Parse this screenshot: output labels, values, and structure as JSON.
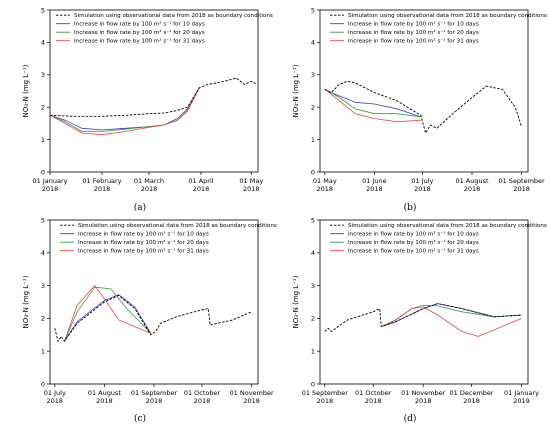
{
  "legend": {
    "base": "Simulation using observational data from 2018 as boundary conditions",
    "s10": "Increase in flow rate by 100 m³ s⁻¹ for 10 days",
    "s20": "Increase in flow rate by 100 m³ s⁻¹ for 20 days",
    "s31": "Increase in flow rate by 100 m³ s⁻¹ for 31 days"
  },
  "colors": {
    "base": "#000000",
    "s10": "#3a3ad8",
    "s20": "#3a9a3a",
    "s31": "#e84545"
  },
  "chart_data": [
    {
      "type": "line",
      "panel_label": "(a)",
      "ylabel": "NO₃-N (mg L⁻¹)",
      "ylim": [
        0,
        5
      ],
      "yticks": [
        0,
        1,
        2,
        3,
        4,
        5
      ],
      "xlim": [
        "2018-01-01",
        "2018-05-05"
      ],
      "xticks": [
        {
          "x": "2018-01-01",
          "label": "01 January",
          "year": "2018"
        },
        {
          "x": "2018-02-01",
          "label": "01 February",
          "year": "2018"
        },
        {
          "x": "2018-03-01",
          "label": "01 March",
          "year": "2018"
        },
        {
          "x": "2018-04-01",
          "label": "01 April",
          "year": "2018"
        },
        {
          "x": "2018-05-01",
          "label": "01 May",
          "year": "2018"
        }
      ],
      "legend_position": "top-left",
      "series": [
        {
          "key": "base",
          "style": "dashed",
          "x": [
            "2018-01-01",
            "2018-01-15",
            "2018-02-01",
            "2018-02-15",
            "2018-03-01",
            "2018-03-10",
            "2018-03-18",
            "2018-03-24",
            "2018-03-31",
            "2018-04-05",
            "2018-04-15",
            "2018-04-22",
            "2018-04-27",
            "2018-05-01",
            "2018-05-04"
          ],
          "y": [
            1.75,
            1.72,
            1.72,
            1.75,
            1.8,
            1.82,
            1.9,
            2.0,
            2.6,
            2.7,
            2.8,
            2.9,
            2.7,
            2.8,
            2.72
          ]
        },
        {
          "key": "s10",
          "style": "solid",
          "x": [
            "2018-01-01",
            "2018-01-10",
            "2018-01-20",
            "2018-02-01",
            "2018-02-15",
            "2018-03-01",
            "2018-03-10",
            "2018-03-18",
            "2018-03-24",
            "2018-03-31"
          ],
          "y": [
            1.75,
            1.6,
            1.35,
            1.3,
            1.35,
            1.4,
            1.45,
            1.65,
            1.95,
            2.6
          ]
        },
        {
          "key": "s20",
          "style": "solid",
          "x": [
            "2018-01-01",
            "2018-01-10",
            "2018-01-20",
            "2018-02-01",
            "2018-02-15",
            "2018-03-01",
            "2018-03-10",
            "2018-03-18",
            "2018-03-24",
            "2018-03-31"
          ],
          "y": [
            1.75,
            1.55,
            1.25,
            1.25,
            1.32,
            1.4,
            1.45,
            1.6,
            1.9,
            2.6
          ]
        },
        {
          "key": "s31",
          "style": "solid",
          "x": [
            "2018-01-01",
            "2018-01-10",
            "2018-01-20",
            "2018-02-01",
            "2018-02-15",
            "2018-03-01",
            "2018-03-10",
            "2018-03-18",
            "2018-03-24",
            "2018-03-31"
          ],
          "y": [
            1.75,
            1.5,
            1.2,
            1.15,
            1.25,
            1.38,
            1.45,
            1.6,
            1.88,
            2.6
          ]
        }
      ]
    },
    {
      "type": "line",
      "panel_label": "(b)",
      "ylabel": "NO₃-N (mg L⁻¹)",
      "ylim": [
        0,
        5
      ],
      "yticks": [
        0,
        1,
        2,
        3,
        4,
        5
      ],
      "xlim": [
        "2018-04-28",
        "2018-09-05"
      ],
      "xticks": [
        {
          "x": "2018-05-01",
          "label": "01 May",
          "year": "2018"
        },
        {
          "x": "2018-06-01",
          "label": "01 June",
          "year": "2018"
        },
        {
          "x": "2018-07-01",
          "label": "01 July",
          "year": "2018"
        },
        {
          "x": "2018-08-01",
          "label": "01 August",
          "year": "2018"
        },
        {
          "x": "2018-09-01",
          "label": "01 September",
          "year": "2018"
        }
      ],
      "legend_position": "top-right",
      "series": [
        {
          "key": "base",
          "style": "dashed",
          "x": [
            "2018-05-01",
            "2018-05-05",
            "2018-05-10",
            "2018-05-15",
            "2018-05-20",
            "2018-06-01",
            "2018-06-15",
            "2018-06-30",
            "2018-07-03",
            "2018-07-06",
            "2018-07-10",
            "2018-07-20",
            "2018-08-01",
            "2018-08-10",
            "2018-08-20",
            "2018-08-28",
            "2018-09-01"
          ],
          "y": [
            2.55,
            2.45,
            2.7,
            2.8,
            2.75,
            2.45,
            2.2,
            1.75,
            1.2,
            1.45,
            1.35,
            1.8,
            2.3,
            2.65,
            2.55,
            2.0,
            1.4
          ]
        },
        {
          "key": "s10",
          "style": "solid",
          "x": [
            "2018-05-01",
            "2018-05-05",
            "2018-05-10",
            "2018-05-20",
            "2018-06-01",
            "2018-06-15",
            "2018-06-30"
          ],
          "y": [
            2.55,
            2.45,
            2.35,
            2.15,
            2.1,
            1.95,
            1.7
          ]
        },
        {
          "key": "s20",
          "style": "solid",
          "x": [
            "2018-05-01",
            "2018-05-05",
            "2018-05-10",
            "2018-05-20",
            "2018-06-01",
            "2018-06-15",
            "2018-06-30"
          ],
          "y": [
            2.55,
            2.45,
            2.3,
            1.95,
            1.8,
            1.8,
            1.7
          ]
        },
        {
          "key": "s31",
          "style": "solid",
          "x": [
            "2018-05-01",
            "2018-05-05",
            "2018-05-10",
            "2018-05-20",
            "2018-06-01",
            "2018-06-15",
            "2018-06-30"
          ],
          "y": [
            2.55,
            2.4,
            2.2,
            1.8,
            1.65,
            1.55,
            1.6
          ]
        }
      ]
    },
    {
      "type": "line",
      "panel_label": "(c)",
      "ylabel": "NO₃-N (mg L⁻¹)",
      "ylim": [
        0,
        5
      ],
      "yticks": [
        0,
        1,
        2,
        3,
        4,
        5
      ],
      "xlim": [
        "2018-06-28",
        "2018-11-05"
      ],
      "xticks": [
        {
          "x": "2018-07-01",
          "label": "01 July",
          "year": "2018"
        },
        {
          "x": "2018-08-01",
          "label": "01 August",
          "year": "2018"
        },
        {
          "x": "2018-09-01",
          "label": "01 September",
          "year": "2018"
        },
        {
          "x": "2018-10-01",
          "label": "01 October",
          "year": "2018"
        },
        {
          "x": "2018-11-01",
          "label": "01 November",
          "year": "2018"
        }
      ],
      "legend_position": "top-right",
      "series": [
        {
          "key": "base",
          "style": "dashed",
          "x": [
            "2018-07-01",
            "2018-07-03",
            "2018-07-05",
            "2018-07-07",
            "2018-07-15",
            "2018-08-01",
            "2018-08-10",
            "2018-08-20",
            "2018-08-30",
            "2018-09-02",
            "2018-09-05",
            "2018-09-15",
            "2018-09-30",
            "2018-10-05",
            "2018-10-06",
            "2018-10-20",
            "2018-11-01"
          ],
          "y": [
            1.7,
            1.3,
            1.45,
            1.3,
            1.85,
            2.5,
            2.7,
            2.3,
            1.5,
            1.6,
            1.85,
            2.05,
            2.25,
            2.3,
            1.8,
            1.95,
            2.2
          ]
        },
        {
          "key": "s10",
          "style": "solid",
          "x": [
            "2018-07-07",
            "2018-07-15",
            "2018-08-01",
            "2018-08-10",
            "2018-08-20",
            "2018-08-30"
          ],
          "y": [
            1.3,
            1.9,
            2.55,
            2.72,
            2.35,
            1.55
          ]
        },
        {
          "key": "s20",
          "style": "solid",
          "x": [
            "2018-07-07",
            "2018-07-15",
            "2018-07-26",
            "2018-08-05",
            "2018-08-15",
            "2018-08-30"
          ],
          "y": [
            1.3,
            2.2,
            2.95,
            2.9,
            2.3,
            1.55
          ]
        },
        {
          "key": "s31",
          "style": "solid",
          "x": [
            "2018-07-07",
            "2018-07-15",
            "2018-07-26",
            "2018-08-01",
            "2018-08-10",
            "2018-08-30"
          ],
          "y": [
            1.3,
            2.4,
            3.0,
            2.6,
            1.95,
            1.55
          ]
        }
      ]
    },
    {
      "type": "line",
      "panel_label": "(d)",
      "ylabel": "NO₃-N (mg L⁻¹)",
      "ylim": [
        0,
        5
      ],
      "yticks": [
        0,
        1,
        2,
        3,
        4,
        5
      ],
      "xlim": [
        "2018-08-29",
        "2019-01-05"
      ],
      "xticks": [
        {
          "x": "2018-09-01",
          "label": "01 September",
          "year": "2018"
        },
        {
          "x": "2018-10-01",
          "label": "01 October",
          "year": "2018"
        },
        {
          "x": "2018-11-01",
          "label": "01 November",
          "year": "2018"
        },
        {
          "x": "2018-12-01",
          "label": "01 December",
          "year": "2018"
        },
        {
          "x": "2019-01-01",
          "label": "01 January",
          "year": "2019"
        }
      ],
      "legend_position": "top-right",
      "series": [
        {
          "key": "base",
          "style": "dashed",
          "x": [
            "2018-09-01",
            "2018-09-03",
            "2018-09-05",
            "2018-09-15",
            "2018-10-01",
            "2018-10-05",
            "2018-10-06",
            "2018-10-15",
            "2018-11-01",
            "2018-11-10",
            "2018-11-25",
            "2018-12-15",
            "2019-01-01"
          ],
          "y": [
            1.6,
            1.7,
            1.6,
            1.95,
            2.2,
            2.3,
            1.75,
            1.9,
            2.3,
            2.45,
            2.3,
            2.05,
            2.1
          ]
        },
        {
          "key": "s10",
          "style": "solid",
          "x": [
            "2018-10-06",
            "2018-10-15",
            "2018-11-01",
            "2018-11-10",
            "2018-11-25",
            "2018-12-15",
            "2019-01-01"
          ],
          "y": [
            1.75,
            1.9,
            2.3,
            2.45,
            2.3,
            2.05,
            2.1
          ]
        },
        {
          "key": "s20",
          "style": "solid",
          "x": [
            "2018-10-06",
            "2018-10-15",
            "2018-10-25",
            "2018-11-01",
            "2018-11-10",
            "2018-11-25",
            "2018-12-15",
            "2019-01-01"
          ],
          "y": [
            1.75,
            1.95,
            2.3,
            2.4,
            2.38,
            2.2,
            2.05,
            2.1
          ]
        },
        {
          "key": "s31",
          "style": "solid",
          "x": [
            "2018-10-06",
            "2018-10-15",
            "2018-10-25",
            "2018-11-01",
            "2018-11-10",
            "2018-11-25",
            "2018-12-05",
            "2018-12-15",
            "2019-01-01"
          ],
          "y": [
            1.75,
            1.95,
            2.3,
            2.35,
            2.1,
            1.6,
            1.45,
            1.65,
            2.0
          ]
        }
      ]
    }
  ]
}
